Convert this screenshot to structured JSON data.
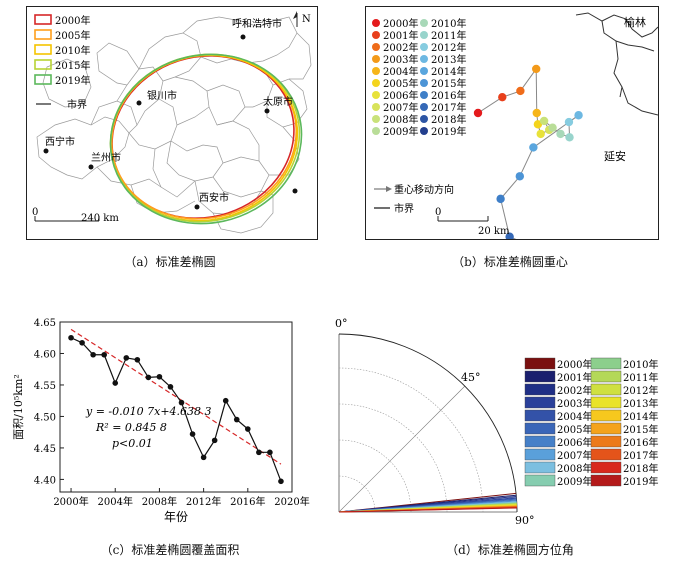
{
  "panels": {
    "a": {
      "caption": "（a）标准差椭圆",
      "legend_title": "",
      "legend": [
        {
          "label": "2000年",
          "color": "#d62728"
        },
        {
          "label": "2005年",
          "color": "#ff9f1c"
        },
        {
          "label": "2010年",
          "color": "#f5c400"
        },
        {
          "label": "2015年",
          "color": "#b7d334"
        },
        {
          "label": "2019年",
          "color": "#5cb85c"
        }
      ],
      "boundary_label": "市界",
      "cities": [
        "呼和浩特市",
        "银川市",
        "太原市",
        "西宁市",
        "兰州市",
        "西安市"
      ],
      "scale_start": "0",
      "scale_end": "240 km",
      "north": "N"
    },
    "b": {
      "caption": "（b）标准差椭圆重心",
      "years_left": [
        "2000年",
        "2001年",
        "2002年",
        "2003年",
        "2004年",
        "2005年",
        "2006年",
        "2007年",
        "2008年",
        "2009年"
      ],
      "years_right": [
        "2010年",
        "2011年",
        "2012年",
        "2013年",
        "2014年",
        "2015年",
        "2016年",
        "2017年",
        "2018年",
        "2019年"
      ],
      "colors_left": [
        "#e41a1c",
        "#e8401c",
        "#ef6c1a",
        "#f39a1a",
        "#f6b51a",
        "#f4d41c",
        "#e8e23a",
        "#d8e35a",
        "#c9e27a",
        "#b9dd98"
      ],
      "colors_right": [
        "#a8d8b8",
        "#98d4cc",
        "#86cce0",
        "#6db8e2",
        "#5aa6de",
        "#4c94d6",
        "#3f7fc8",
        "#3568b6",
        "#2d55a4",
        "#233f8e"
      ],
      "direction_label": "重心移动方向",
      "boundary_label": "市界",
      "city_yulin": "榆林",
      "city_yanan": "延安",
      "scale_start": "0",
      "scale_end": "20 km"
    },
    "c": {
      "caption": "（c）标准差椭圆覆盖面积",
      "ylabel": "面积/10⁵km²",
      "xlabel": "年份",
      "equation": "y = -0.010 7x+4.638 3",
      "r2": "R² = 0.845 8",
      "p": "p<0.01"
    },
    "d": {
      "caption": "（d）标准差椭圆方位角",
      "label_0": "0°",
      "label_45": "45°",
      "label_90": "90°",
      "years_left": [
        "2000年",
        "2001年",
        "2002年",
        "2003年",
        "2004年",
        "2005年",
        "2006年",
        "2007年",
        "2008年",
        "2009年"
      ],
      "years_right": [
        "2010年",
        "2011年",
        "2012年",
        "2013年",
        "2014年",
        "2015年",
        "2016年",
        "2017年",
        "2018年",
        "2019年"
      ],
      "colors_left": [
        "#7a1010",
        "#1a1f6e",
        "#1f2f86",
        "#2a409a",
        "#3352a8",
        "#3a66b8",
        "#4680c8",
        "#5aa0da",
        "#7cbfe0",
        "#86cdb0"
      ],
      "colors_right": [
        "#8ccf8c",
        "#b4d858",
        "#cfe040",
        "#e9e32a",
        "#f6c81e",
        "#f4a31c",
        "#ec7a1a",
        "#e4541a",
        "#d8281c",
        "#b41a1a"
      ]
    }
  },
  "chart_data": [
    {
      "type": "line",
      "panel": "c",
      "x": [
        2000,
        2001,
        2002,
        2003,
        2004,
        2005,
        2006,
        2007,
        2008,
        2009,
        2010,
        2011,
        2012,
        2013,
        2014,
        2015,
        2016,
        2017,
        2018,
        2019
      ],
      "y": [
        4.625,
        4.617,
        4.598,
        4.598,
        4.553,
        4.593,
        4.59,
        4.562,
        4.563,
        4.547,
        4.522,
        4.472,
        4.435,
        4.462,
        4.525,
        4.495,
        4.48,
        4.443,
        4.443,
        4.397
      ],
      "trend": {
        "slope": -0.0107,
        "intercept": 4.6383,
        "x_from": 2000,
        "x_to": 2019,
        "color": "#d62728"
      },
      "xlim": [
        1999,
        2020
      ],
      "ylim": [
        4.38,
        4.65
      ],
      "xticks": [
        "2000年",
        "2004年",
        "2008年",
        "2012年",
        "2016年",
        "2020年"
      ],
      "xtick_values": [
        2000,
        2004,
        2008,
        2012,
        2016,
        2020
      ],
      "yticks": [
        "4.40",
        "4.45",
        "4.50",
        "4.55",
        "4.60",
        "4.65"
      ],
      "ytick_values": [
        4.4,
        4.45,
        4.5,
        4.55,
        4.6,
        4.65
      ],
      "xlabel": "年份",
      "ylabel": "面积/10⁵km²"
    },
    {
      "type": "scatter",
      "panel": "b",
      "units": "km",
      "x": [
        0.0,
        4.3,
        7.5,
        10.3,
        10.4,
        10.6,
        11.1,
        12.6,
        11.7,
        13.2,
        14.6,
        16.2,
        16.1,
        17.8,
        9.8,
        7.4,
        4.0,
        5.6,
        9.6,
        13.3
      ],
      "y": [
        0.0,
        2.8,
        3.9,
        7.8,
        0.0,
        -2.0,
        -3.7,
        -3.0,
        -1.4,
        -2.6,
        -3.7,
        -4.3,
        -1.6,
        -0.4,
        -6.1,
        -11.2,
        -15.2,
        -21.9,
        -23.6,
        -26.6
      ],
      "series_colors": "panels.b.colors_left + panels.b.colors_right"
    },
    {
      "type": "polar",
      "panel": "d",
      "theta_range_deg": [
        0,
        90
      ],
      "azimuths_deg": [
        84.0,
        84.6,
        85.0,
        85.4,
        85.7,
        86.0,
        86.3,
        86.6,
        86.8,
        87.0,
        87.2,
        87.3,
        87.5,
        87.7,
        87.9,
        88.1,
        88.2,
        88.4,
        88.6,
        88.7
      ]
    }
  ]
}
